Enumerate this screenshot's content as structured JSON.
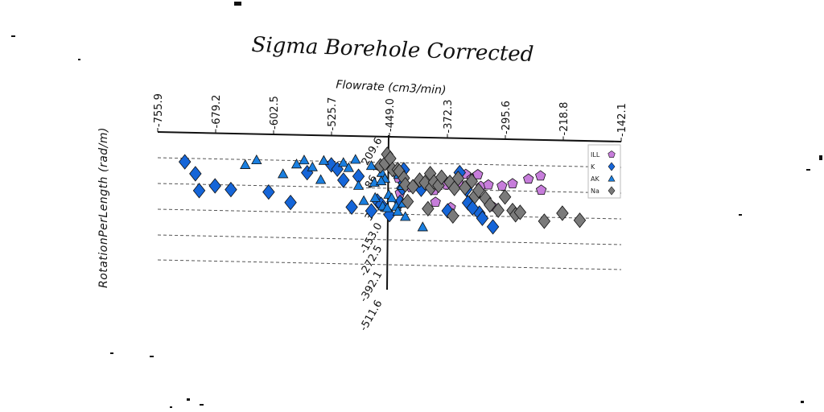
{
  "chart_data": {
    "type": "scatter",
    "title": "Sigma Borehole Corrected",
    "xlabel": "Flowrate (cm3/min)",
    "ylabel": "RotationPerLength (rad/m)",
    "xlim": [
      -755.9,
      -142.1
    ],
    "ylim": [
      -511.6,
      209.6
    ],
    "x_ticks": [
      "-755.9",
      "-679.2",
      "-602.5",
      "-525.7",
      "-449.0",
      "-372.3",
      "-295.6",
      "-218.8",
      "-142.1"
    ],
    "y_ticks": [
      "209.6",
      "86.1",
      "33.0",
      "-153.0",
      "-272.5",
      "-392.1",
      "-511.6"
    ],
    "legend": {
      "placement": "top-right",
      "entries": [
        {
          "label": "ILL",
          "marker": "pentagon",
          "color": "#c77ddb"
        },
        {
          "label": "K",
          "marker": "diamond",
          "color": "#1565d8"
        },
        {
          "label": "AK",
          "marker": "triangle",
          "color": "#1a7fe0"
        },
        {
          "label": "Na",
          "marker": "diamond",
          "color": "#7a7a7a"
        }
      ]
    },
    "series": [
      {
        "name": "ILL",
        "marker": "pentagon",
        "color": "#c77ddb",
        "points": [
          [
            -390,
            10
          ],
          [
            -379,
            75
          ],
          [
            -373,
            45
          ],
          [
            -358,
            60
          ],
          [
            -348,
            110
          ],
          [
            -340,
            85
          ],
          [
            -332,
            110
          ],
          [
            -328,
            40
          ],
          [
            -318,
            50
          ],
          [
            -312,
            -80
          ],
          [
            -300,
            45
          ],
          [
            -388,
            -60
          ],
          [
            -437,
            80
          ],
          [
            -435,
            -10
          ],
          [
            -265,
            90
          ],
          [
            -248,
            25
          ],
          [
            -249,
            110
          ],
          [
            -286,
            60
          ],
          [
            -420,
            25
          ],
          [
            -368,
            -90
          ]
        ]
      },
      {
        "name": "K",
        "marker": "diamond",
        "color": "#1565d8",
        "points": [
          [
            -720,
            150
          ],
          [
            -706,
            80
          ],
          [
            -701,
            -20
          ],
          [
            -680,
            10
          ],
          [
            -659,
            -10
          ],
          [
            -609,
            -20
          ],
          [
            -580,
            -80
          ],
          [
            -558,
            100
          ],
          [
            -526,
            150
          ],
          [
            -518,
            125
          ],
          [
            -510,
            60
          ],
          [
            -490,
            85
          ],
          [
            -499,
            -100
          ],
          [
            -465,
            -60
          ],
          [
            -435,
            -65
          ],
          [
            -430,
            130
          ],
          [
            -432,
            20
          ],
          [
            -430,
            50
          ],
          [
            -372,
            -110
          ],
          [
            -356,
            120
          ],
          [
            -347,
            20
          ],
          [
            -330,
            -120
          ],
          [
            -326,
            -150
          ],
          [
            -312,
            -200
          ],
          [
            -345,
            -60
          ],
          [
            -339,
            -90
          ],
          [
            -407,
            15
          ],
          [
            -449,
            -140
          ],
          [
            -460,
            -80
          ],
          [
            -473,
            -120
          ]
        ]
      },
      {
        "name": "AK",
        "marker": "triangle",
        "color": "#1a7fe0",
        "points": [
          [
            -640,
            140
          ],
          [
            -625,
            170
          ],
          [
            -590,
            90
          ],
          [
            -572,
            150
          ],
          [
            -562,
            175
          ],
          [
            -551,
            135
          ],
          [
            -540,
            60
          ],
          [
            -536,
            175
          ],
          [
            -510,
            165
          ],
          [
            -503,
            135
          ],
          [
            -494,
            185
          ],
          [
            -490,
            30
          ],
          [
            -483,
            -60
          ],
          [
            -473,
            150
          ],
          [
            -469,
            50
          ],
          [
            -459,
            110
          ],
          [
            -455,
            75
          ],
          [
            -450,
            -20
          ],
          [
            -446,
            -40
          ],
          [
            -440,
            -90
          ],
          [
            -438,
            -120
          ],
          [
            -431,
            -70
          ],
          [
            -428,
            -150
          ],
          [
            -468,
            -40
          ],
          [
            -460,
            60
          ],
          [
            -458,
            -90
          ],
          [
            -452,
            -100
          ],
          [
            -405,
            -210
          ],
          [
            -432,
            35
          ],
          [
            -437,
            100
          ]
        ]
      },
      {
        "name": "Na",
        "marker": "diamond",
        "color": "#7a7a7a",
        "points": [
          [
            -461,
            150
          ],
          [
            -455,
            165
          ],
          [
            -452,
            220
          ],
          [
            -448,
            195
          ],
          [
            -445,
            130
          ],
          [
            -438,
            130
          ],
          [
            -436,
            120
          ],
          [
            -430,
            80
          ],
          [
            -428,
            40
          ],
          [
            -425,
            -60
          ],
          [
            -418,
            30
          ],
          [
            -409,
            70
          ],
          [
            -402,
            55
          ],
          [
            -398,
            -100
          ],
          [
            -395,
            110
          ],
          [
            -394,
            25
          ],
          [
            -390,
            60
          ],
          [
            -384,
            40
          ],
          [
            -380,
            90
          ],
          [
            -369,
            60
          ],
          [
            -363,
            25
          ],
          [
            -358,
            85
          ],
          [
            -349,
            30
          ],
          [
            -340,
            70
          ],
          [
            -336,
            -20
          ],
          [
            -331,
            15
          ],
          [
            -322,
            -30
          ],
          [
            -316,
            -70
          ],
          [
            -305,
            -100
          ],
          [
            -296,
            -20
          ],
          [
            -286,
            -100
          ],
          [
            -282,
            -125
          ],
          [
            -276,
            -110
          ],
          [
            -220,
            -110
          ],
          [
            -244,
            -160
          ],
          [
            -197,
            -150
          ],
          [
            -365,
            -140
          ]
        ]
      }
    ]
  }
}
